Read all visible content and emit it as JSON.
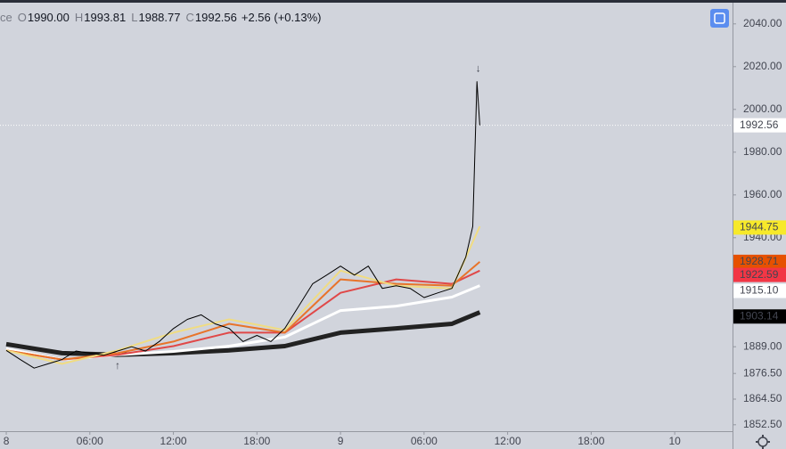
{
  "header": {
    "symbol_fragment": "ce",
    "ohlc": [
      {
        "key": "O",
        "value": "1990.00"
      },
      {
        "key": "H",
        "value": "1993.81"
      },
      {
        "key": "L",
        "value": "1988.77"
      },
      {
        "key": "C",
        "value": "1992.56"
      }
    ],
    "change": "+2.56 (+0.13%)"
  },
  "chart_data": {
    "type": "line",
    "xlim": [
      -0.45,
      52.15
    ],
    "xticks": [
      {
        "value": 0,
        "label": "8"
      },
      {
        "value": 6,
        "label": "06:00"
      },
      {
        "value": 12,
        "label": "12:00"
      },
      {
        "value": 18,
        "label": "18:00"
      },
      {
        "value": 24,
        "label": "9"
      },
      {
        "value": 30,
        "label": "06:00"
      },
      {
        "value": 36,
        "label": "12:00"
      },
      {
        "value": 42,
        "label": "18:00"
      },
      {
        "value": 48,
        "label": "10"
      }
    ],
    "ylim": [
      1849.5,
      2049.5
    ],
    "yticks": [
      {
        "value": 2040,
        "label": "2040.00"
      },
      {
        "value": 2020,
        "label": "2020.00"
      },
      {
        "value": 2000,
        "label": "2000.00"
      },
      {
        "value": 1980,
        "label": "1980.00"
      },
      {
        "value": 1960,
        "label": "1960.00"
      },
      {
        "value": 1940,
        "label": "1940.00"
      },
      {
        "value": 1889,
        "label": "1889.00"
      },
      {
        "value": 1876.5,
        "label": "1876.50"
      },
      {
        "value": 1864.5,
        "label": "1864.50"
      },
      {
        "value": 1852.5,
        "label": "1852.50"
      }
    ],
    "series": [
      {
        "color": "#222222",
        "line_width": 5,
        "x": [
          0,
          4,
          8,
          12,
          16,
          20,
          24,
          28,
          32,
          34
        ],
        "values": [
          1890.2,
          1886,
          1885.2,
          1886,
          1887.3,
          1889.3,
          1895.6,
          1897.6,
          1899.7,
          1905.1
        ]
      },
      {
        "color": "#ffffff",
        "line_width": 3,
        "x": [
          0,
          4,
          8,
          12,
          16,
          20,
          24,
          28,
          32,
          34
        ],
        "values": [
          1888,
          1883,
          1885.2,
          1886.8,
          1889.3,
          1893.5,
          1905.9,
          1908,
          1912.2,
          1917.6
        ]
      },
      {
        "color": "#e04848",
        "line_width": 2,
        "x": [
          0,
          4,
          8,
          12,
          16,
          20,
          24,
          28,
          32,
          34
        ],
        "values": [
          1887.3,
          1883,
          1885.2,
          1889.3,
          1895.6,
          1895.6,
          1914.2,
          1920.5,
          1918.4,
          1924.6
        ]
      },
      {
        "color": "#e8742a",
        "line_width": 2,
        "x": [
          0,
          4,
          8,
          12,
          16,
          20,
          24,
          28,
          32,
          34
        ],
        "values": [
          1887.3,
          1883,
          1886,
          1891.4,
          1899.7,
          1895.6,
          1920.5,
          1918.4,
          1917.6,
          1928.7
        ]
      },
      {
        "color": "#f0dc82",
        "line_width": 2,
        "x": [
          0,
          4,
          8,
          12,
          16,
          20,
          24,
          28,
          32,
          34
        ],
        "values": [
          1887.3,
          1881,
          1887.3,
          1895.6,
          1901.8,
          1896.8,
          1924.6,
          1917.5,
          1916.3,
          1945.3
        ]
      },
      {
        "color": "#000000",
        "line_width": 1,
        "x": [
          0,
          1,
          2,
          3,
          4,
          5,
          6,
          7,
          8,
          9,
          10,
          11,
          12,
          13,
          14,
          15,
          16,
          17,
          18,
          19,
          20,
          21,
          22,
          23,
          24,
          25,
          26,
          27,
          28,
          29,
          30,
          31,
          32,
          33,
          33.5,
          33.8,
          34
        ],
        "values": [
          1887.3,
          1883,
          1879,
          1881,
          1883,
          1887,
          1886,
          1885,
          1887,
          1889,
          1887,
          1891.5,
          1897.5,
          1901.8,
          1903.9,
          1899.7,
          1897.6,
          1891.4,
          1894.3,
          1891.4,
          1897.6,
          1908,
          1918.4,
          1922.5,
          1926.7,
          1922.5,
          1926.7,
          1916.3,
          1917.5,
          1916.3,
          1912,
          1914.2,
          1916.3,
          1931,
          1945.3,
          2013,
          1992.56
        ]
      }
    ],
    "current_price": 1992.56,
    "price_labels": [
      {
        "value": 1992.56,
        "label": "1992.56",
        "color": "#ffffff",
        "text_color": "#131722"
      },
      {
        "value": 1944.75,
        "label": "1944.75",
        "color": "#f7e92a",
        "text_color": "#131722"
      },
      {
        "value": 1928.71,
        "label": "1928.71",
        "color": "#e65100",
        "text_color": "#ffffff"
      },
      {
        "value": 1922.59,
        "label": "1922.59",
        "color": "#f23645",
        "text_color": "#ffffff"
      },
      {
        "value": 1915.1,
        "label": "1915.10",
        "color": "#ffffff",
        "text_color": "#131722"
      },
      {
        "value": 1903.14,
        "label": "1903.14",
        "color": "#000000",
        "text_color": "#ffffff"
      }
    ],
    "markers": [
      {
        "text": "↓",
        "x": 33.9,
        "y": 2019,
        "color": "#f23645"
      },
      {
        "text": "↑",
        "x": 8,
        "y": 1880,
        "color": "#089981"
      }
    ]
  }
}
